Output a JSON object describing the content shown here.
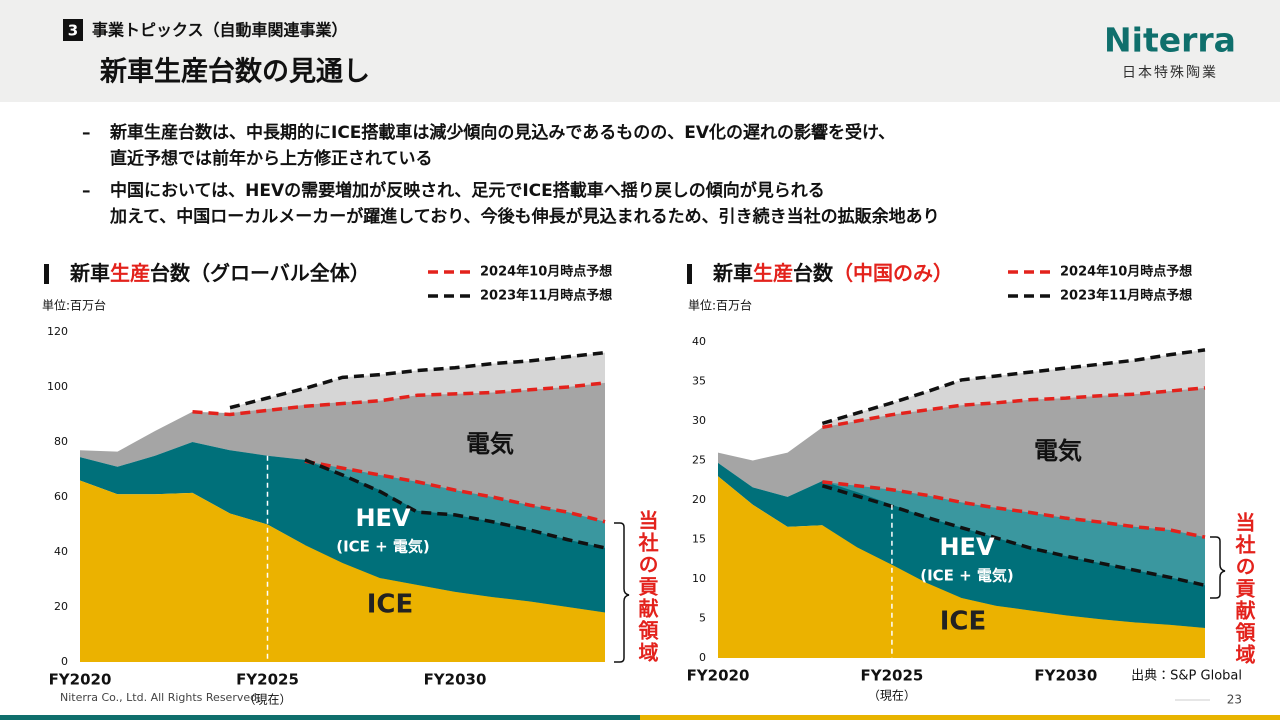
{
  "header": {
    "section_number": "3",
    "breadcrumb": "事業トピックス（自動車関連事業）",
    "title": "新車生産台数の見通し",
    "logo": "Niterra",
    "logo_sub": "日本特殊陶業"
  },
  "bullets": [
    [
      "新車生産台数は、中長期的にICE搭載車は減少傾向の見込みであるものの、EV化の遅れの影響を受け、",
      "直近予想では前年から上方修正されている"
    ],
    [
      "中国においては、HEVの需要増加が反映され、足元でICE搭載車へ揺り戻しの傾向が見られる",
      "加えて、中国ローカルメーカーが躍進しており、今後も伸長が見込まれるため、引き続き当社の拡販余地あり"
    ]
  ],
  "bullet_marker": "–",
  "chart_data": [
    {
      "type": "stacked_area",
      "title_parts": [
        "新車",
        "生産",
        "台数（グローバル全体）"
      ],
      "unit": "単位:百万台",
      "categories": [
        "FY2020",
        null,
        null,
        null,
        null,
        "FY2025",
        null,
        null,
        null,
        null,
        "FY2030",
        null,
        null,
        null,
        null
      ],
      "current_label": "（現在）",
      "ylim": [
        0,
        120
      ],
      "yticks": [
        0,
        20,
        40,
        60,
        80,
        100,
        120
      ],
      "series": [
        {
          "name": "ICE",
          "color": "#ebb200",
          "values": [
            66,
            61,
            61,
            61.5,
            54,
            50,
            42.5,
            36,
            30.5,
            28,
            25.5,
            23.6,
            22,
            20,
            18
          ]
        },
        {
          "name": "HEV",
          "note": "(ICE + 電気)",
          "color": "#00707a",
          "values": [
            8.5,
            10,
            14,
            18.5,
            23,
            25,
            31,
            32,
            32,
            27,
            28,
            27.4,
            26,
            24.5,
            23.5
          ]
        },
        {
          "name": "電気",
          "color": "#a5a5a5",
          "values": [
            2.5,
            5.5,
            9,
            11,
            13.5,
            17,
            20,
            26.5,
            32.5,
            42,
            44,
            47,
            51,
            55.5,
            60
          ]
        }
      ],
      "forecasts": [
        {
          "name": "2024年10月時点予想",
          "color": "#e3221c",
          "fill_under": "boundary",
          "fill_color": "#3a979f",
          "total": [
            null,
            null,
            null,
            91,
            90,
            91.5,
            93,
            94,
            95,
            97,
            97.5,
            98,
            99,
            100,
            101.5
          ],
          "boundary": [
            null,
            null,
            null,
            null,
            null,
            null,
            73,
            70.5,
            68,
            65.5,
            62.5,
            60,
            57,
            54.5,
            51
          ]
        },
        {
          "name": "2023年11月時点予想",
          "color": "#111111",
          "fill_under": "total",
          "fill_color": "#d6d6d6",
          "total": [
            null,
            null,
            null,
            null,
            92.5,
            96,
            99.5,
            103.5,
            104.5,
            106,
            107,
            108.5,
            109.5,
            111,
            112.5
          ],
          "boundary": [
            null,
            null,
            null,
            null,
            null,
            null,
            73.5,
            68,
            62,
            54.5,
            53.5,
            51,
            48,
            44.5,
            41.5
          ]
        }
      ],
      "contribution_label": "当社の貢献領域"
    },
    {
      "type": "stacked_area",
      "title_parts": [
        "新車",
        "生産",
        "台数",
        "（中国のみ）"
      ],
      "unit": "単位:百万台",
      "categories": [
        "FY2020",
        null,
        null,
        null,
        null,
        "FY2025",
        null,
        null,
        null,
        null,
        "FY2030",
        null,
        null,
        null,
        null
      ],
      "current_label": "（現在）",
      "ylim": [
        0,
        40
      ],
      "yticks": [
        0,
        5,
        10,
        15,
        20,
        25,
        30,
        35,
        40
      ],
      "series": [
        {
          "name": "ICE",
          "color": "#ebb200",
          "values": [
            23,
            19.4,
            16.6,
            16.8,
            14,
            11.8,
            9.5,
            7.6,
            6.6,
            6,
            5.4,
            4.9,
            4.5,
            4.2,
            3.8
          ]
        },
        {
          "name": "HEV",
          "note": "(ICE + 電気)",
          "color": "#00707a",
          "values": [
            1.7,
            2.2,
            3.8,
            5.6,
            7,
            7.6,
            8.3,
            8.9,
            8.6,
            7.9,
            7.5,
            7.1,
            6.6,
            6,
            5.4
          ]
        },
        {
          "name": "電気",
          "color": "#a5a5a5",
          "values": [
            1.3,
            3.4,
            5.6,
            6.8,
            9,
            11.4,
            13.6,
            15.5,
            17.1,
            18.8,
            20,
            21.2,
            22.3,
            23.6,
            25
          ]
        }
      ],
      "forecasts": [
        {
          "name": "2024年10月時点予想",
          "color": "#e3221c",
          "fill_under": "boundary",
          "fill_color": "#3a979f",
          "total": [
            null,
            null,
            null,
            29.2,
            30,
            30.8,
            31.4,
            32,
            32.3,
            32.7,
            32.9,
            33.2,
            33.4,
            33.8,
            34.2
          ],
          "boundary": [
            null,
            null,
            null,
            22.3,
            21.8,
            21.3,
            20.6,
            19.7,
            19,
            18.4,
            17.7,
            17.2,
            16.6,
            16.2,
            15.3
          ]
        },
        {
          "name": "2023年11月時点予想",
          "color": "#111111",
          "fill_under": "total",
          "fill_color": "#d6d6d6",
          "total": [
            null,
            null,
            null,
            29.7,
            31,
            32.3,
            33.7,
            35.2,
            35.7,
            36.2,
            36.7,
            37.2,
            37.7,
            38.4,
            39
          ],
          "boundary": [
            null,
            null,
            null,
            21.8,
            20.5,
            19.2,
            17.8,
            16.5,
            15.2,
            13.9,
            12.9,
            12,
            11.1,
            10.2,
            9.2
          ]
        }
      ],
      "contribution_label": "当社の貢献領域"
    }
  ],
  "source": "出典：S&P Global",
  "footer": {
    "copyright": "Niterra Co., Ltd. All Rights Reserved.",
    "page_number": "23"
  }
}
